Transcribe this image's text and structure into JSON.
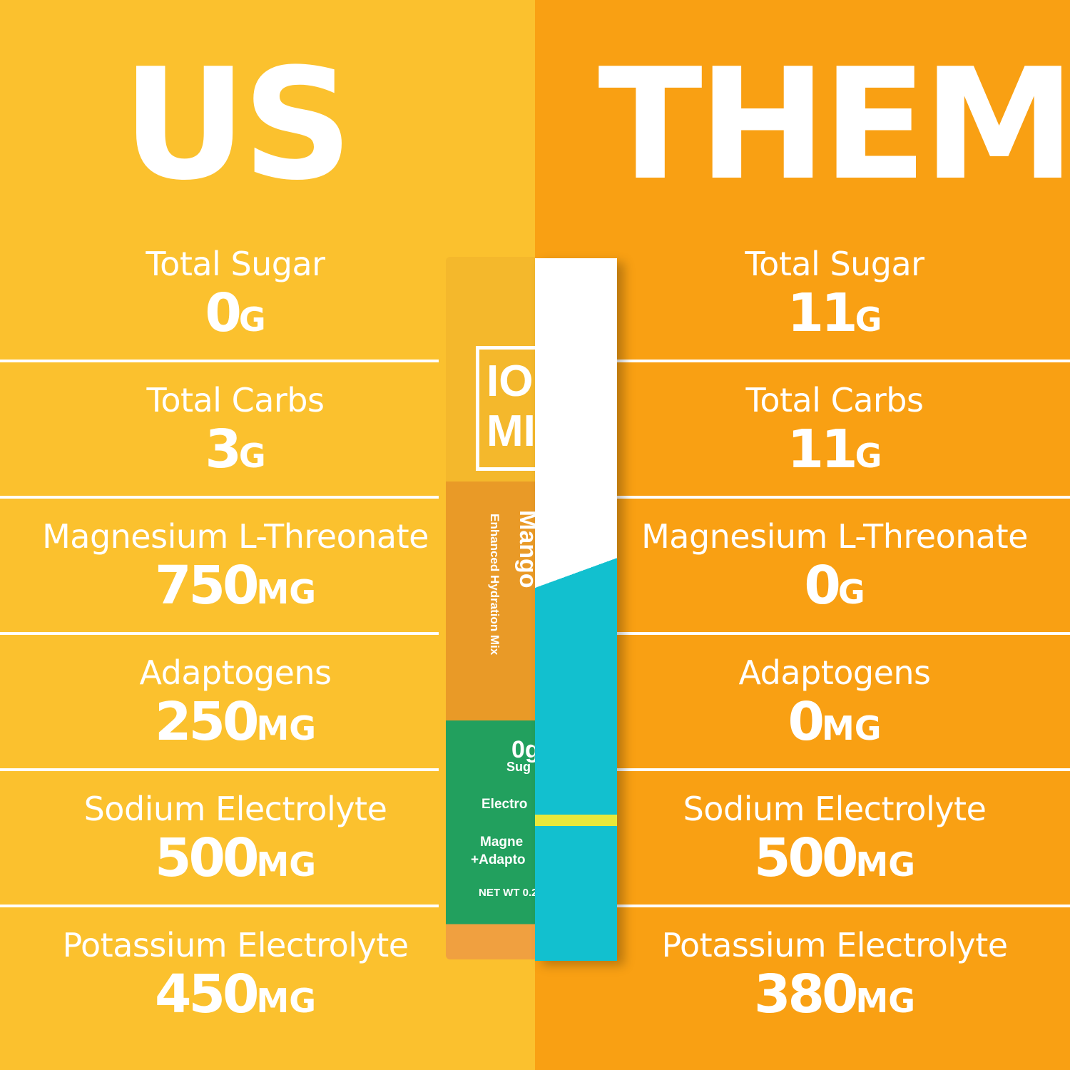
{
  "us": {
    "title": "US",
    "rows": [
      {
        "label": "Total Sugar",
        "value": "0",
        "unit": "G"
      },
      {
        "label": "Total Carbs",
        "value": "3",
        "unit": "G"
      },
      {
        "label": "Magnesium L-Threonate",
        "value": "750",
        "unit": "MG"
      },
      {
        "label": "Adaptogens",
        "value": "250",
        "unit": "MG"
      },
      {
        "label": "Sodium Electrolyte",
        "value": "500",
        "unit": "MG"
      },
      {
        "label": "Potassium Electrolyte",
        "value": "450",
        "unit": "MG"
      }
    ]
  },
  "them": {
    "title": "THEM",
    "rows": [
      {
        "label": "Total Sugar",
        "value": "11",
        "unit": "G"
      },
      {
        "label": "Total Carbs",
        "value": "11",
        "unit": "G"
      },
      {
        "label": "Magnesium L-Threonate",
        "value": "0",
        "unit": "G"
      },
      {
        "label": "Adaptogens",
        "value": "0",
        "unit": "MG"
      },
      {
        "label": "Sodium Electrolyte",
        "value": "500",
        "unit": "MG"
      },
      {
        "label": "Potassium Electrolyte",
        "value": "380",
        "unit": "MG"
      }
    ]
  },
  "packet": {
    "logo": "IO MI",
    "flavor": "Mango",
    "subtitle": "Enhanced Hydration Mix",
    "claims": [
      "0g",
      "Sug",
      "Electro",
      "Magne",
      "+Adapto"
    ],
    "net_wt": "NET WT 0.2"
  },
  "colors": {
    "left_bg": "#FBC12E",
    "right_bg": "#F9A013",
    "packet_green": "#22A05E",
    "packet_teal": "#12C0CF"
  }
}
